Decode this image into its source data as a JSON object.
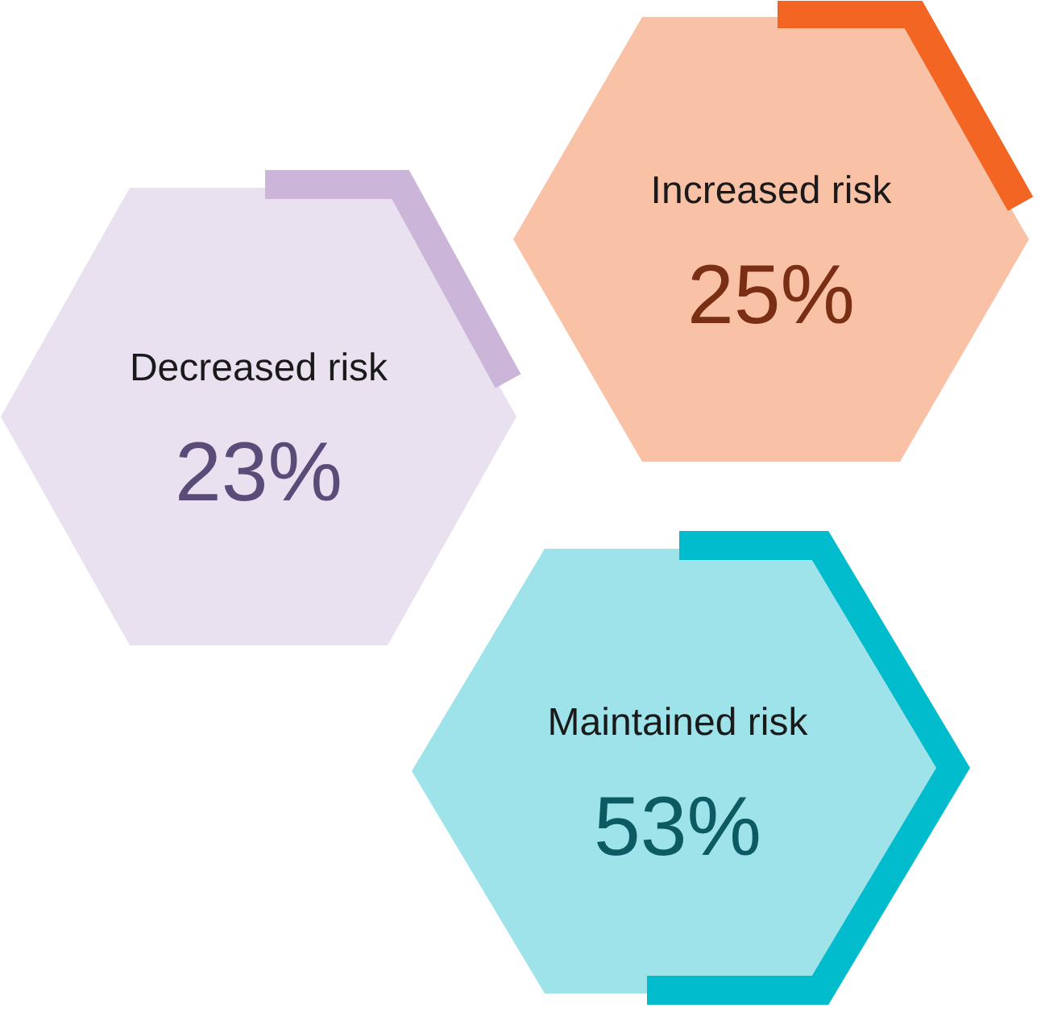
{
  "chart_data": {
    "type": "other",
    "categories": [
      "Decreased risk",
      "Increased risk",
      "Maintained risk"
    ],
    "values": [
      23,
      25,
      53
    ],
    "value_labels": [
      "23%",
      "25%",
      "53%"
    ],
    "colors": [
      "#e9e1ef",
      "#f9c2a7",
      "#9fe3ea"
    ]
  }
}
